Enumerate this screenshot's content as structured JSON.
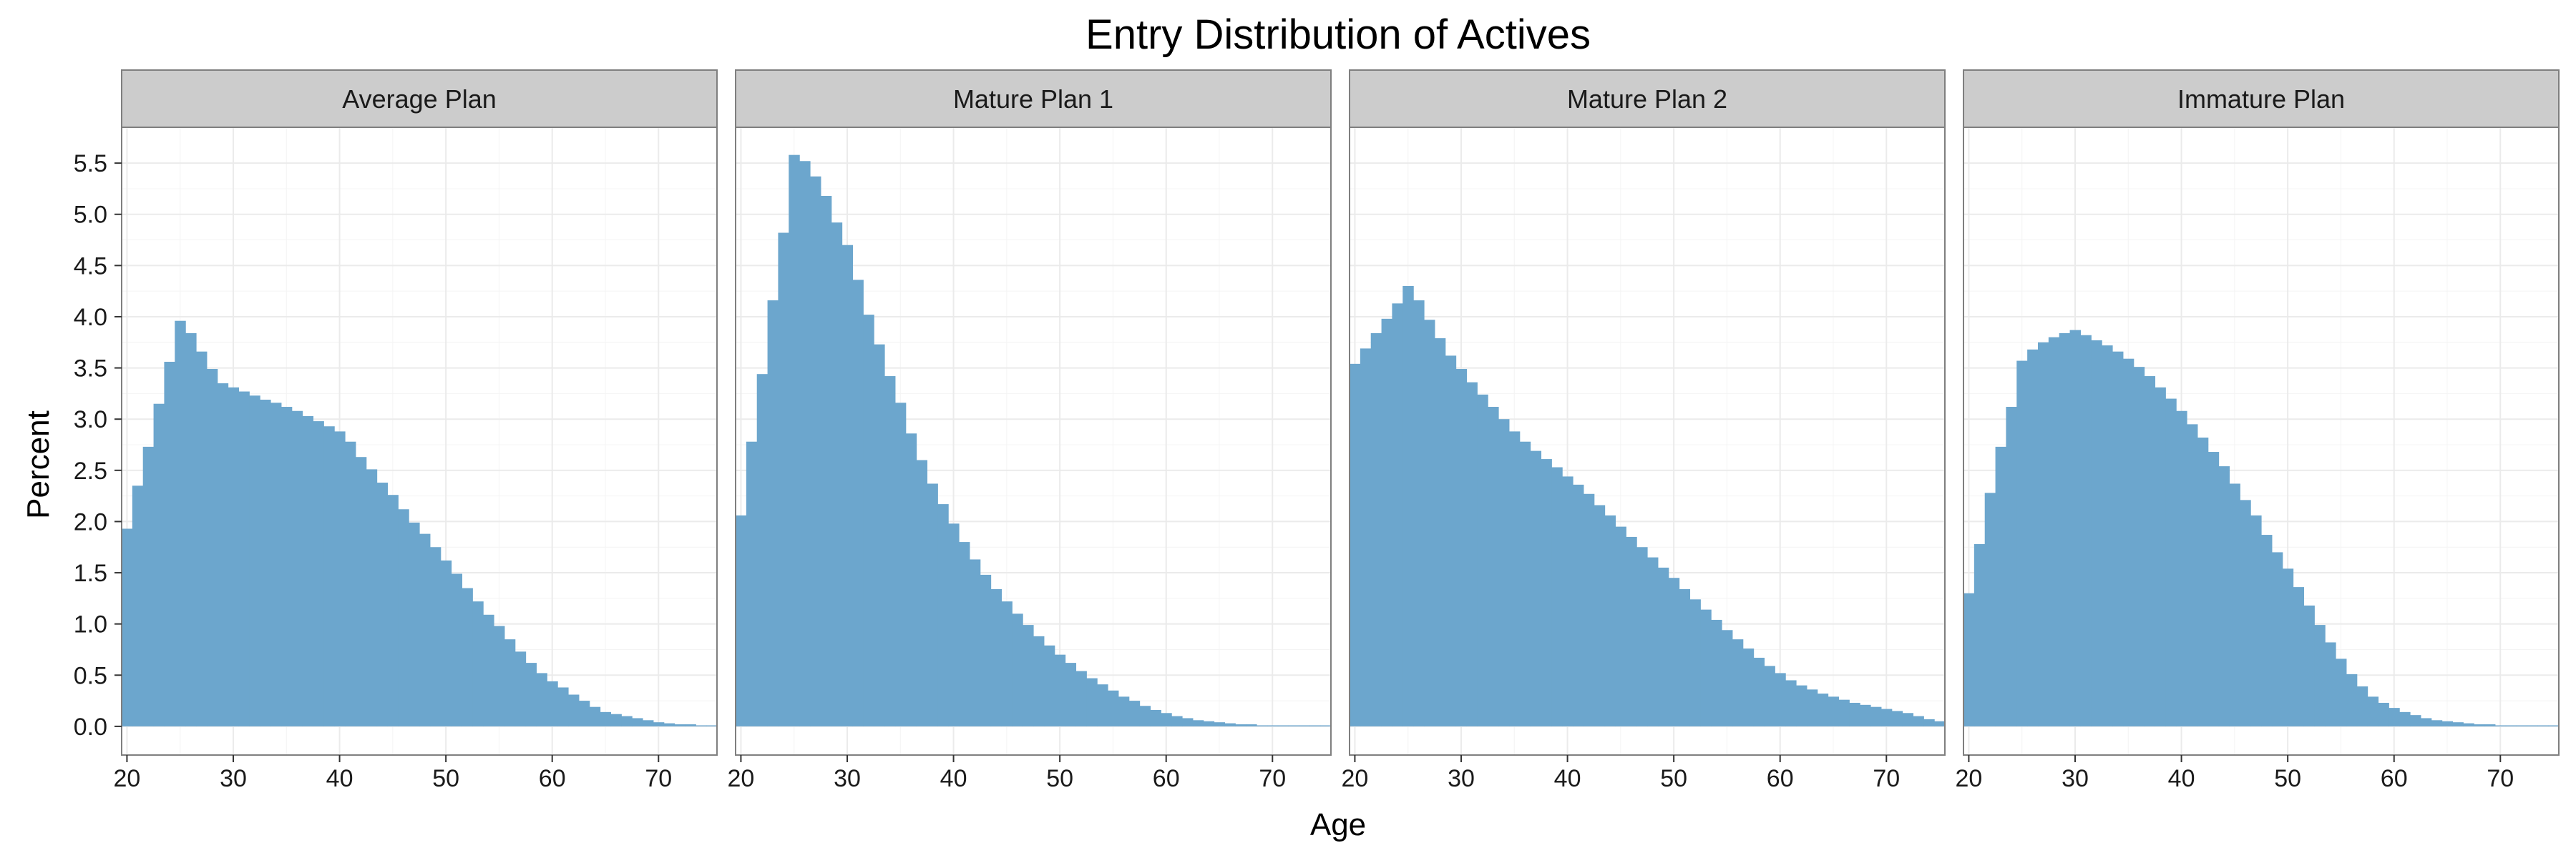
{
  "chart_data": {
    "type": "bar",
    "title": "Entry Distribution of Actives",
    "xlabel": "Age",
    "ylabel": "Percent",
    "xlim": [
      19.5,
      75.5
    ],
    "ylim": [
      -0.28,
      5.85
    ],
    "xticks": [
      "20",
      "30",
      "40",
      "50",
      "60",
      "70"
    ],
    "yticks": [
      "0.0",
      "0.5",
      "1.0",
      "1.5",
      "2.0",
      "2.5",
      "3.0",
      "3.5",
      "4.0",
      "4.5",
      "5.0",
      "5.5"
    ],
    "grid": true,
    "legend": "none",
    "bar_color": "#6ca6cd",
    "x": [
      20,
      21,
      22,
      23,
      24,
      25,
      26,
      27,
      28,
      29,
      30,
      31,
      32,
      33,
      34,
      35,
      36,
      37,
      38,
      39,
      40,
      41,
      42,
      43,
      44,
      45,
      46,
      47,
      48,
      49,
      50,
      51,
      52,
      53,
      54,
      55,
      56,
      57,
      58,
      59,
      60,
      61,
      62,
      63,
      64,
      65,
      66,
      67,
      68,
      69,
      70,
      71,
      72,
      73,
      74,
      75
    ],
    "panels": [
      {
        "name": "Average Plan",
        "values": [
          1.93,
          2.35,
          2.73,
          3.15,
          3.56,
          3.96,
          3.84,
          3.66,
          3.49,
          3.35,
          3.31,
          3.27,
          3.23,
          3.19,
          3.16,
          3.12,
          3.08,
          3.03,
          2.98,
          2.93,
          2.88,
          2.78,
          2.63,
          2.51,
          2.38,
          2.26,
          2.12,
          1.99,
          1.88,
          1.75,
          1.62,
          1.49,
          1.35,
          1.22,
          1.09,
          0.98,
          0.85,
          0.73,
          0.62,
          0.52,
          0.44,
          0.38,
          0.31,
          0.25,
          0.19,
          0.14,
          0.12,
          0.1,
          0.08,
          0.06,
          0.04,
          0.03,
          0.02,
          0.02,
          0.01,
          0.01
        ]
      },
      {
        "name": "Mature Plan 1",
        "values": [
          2.06,
          2.78,
          3.44,
          4.16,
          4.82,
          5.58,
          5.52,
          5.37,
          5.18,
          4.92,
          4.7,
          4.36,
          4.02,
          3.73,
          3.42,
          3.16,
          2.86,
          2.6,
          2.37,
          2.17,
          1.98,
          1.8,
          1.63,
          1.48,
          1.34,
          1.22,
          1.1,
          0.99,
          0.88,
          0.79,
          0.7,
          0.62,
          0.54,
          0.47,
          0.41,
          0.35,
          0.29,
          0.25,
          0.2,
          0.16,
          0.13,
          0.1,
          0.08,
          0.06,
          0.05,
          0.04,
          0.03,
          0.02,
          0.02,
          0.01,
          0.01,
          0.01,
          0.01,
          0.01,
          0.01,
          0.01
        ]
      },
      {
        "name": "Mature Plan 2",
        "values": [
          3.54,
          3.69,
          3.84,
          3.98,
          4.13,
          4.3,
          4.16,
          3.97,
          3.79,
          3.62,
          3.49,
          3.36,
          3.24,
          3.12,
          3.0,
          2.88,
          2.78,
          2.69,
          2.61,
          2.53,
          2.44,
          2.36,
          2.27,
          2.16,
          2.06,
          1.95,
          1.85,
          1.75,
          1.65,
          1.55,
          1.45,
          1.34,
          1.24,
          1.14,
          1.04,
          0.94,
          0.85,
          0.76,
          0.67,
          0.59,
          0.52,
          0.45,
          0.4,
          0.36,
          0.32,
          0.29,
          0.26,
          0.23,
          0.21,
          0.19,
          0.17,
          0.15,
          0.13,
          0.1,
          0.07,
          0.05
        ]
      },
      {
        "name": "Immature Plan",
        "values": [
          1.3,
          1.78,
          2.28,
          2.73,
          3.12,
          3.57,
          3.68,
          3.75,
          3.8,
          3.84,
          3.87,
          3.82,
          3.77,
          3.72,
          3.66,
          3.59,
          3.51,
          3.42,
          3.31,
          3.2,
          3.08,
          2.95,
          2.82,
          2.68,
          2.54,
          2.37,
          2.21,
          2.06,
          1.87,
          1.7,
          1.54,
          1.36,
          1.18,
          0.99,
          0.82,
          0.66,
          0.51,
          0.39,
          0.29,
          0.23,
          0.18,
          0.14,
          0.11,
          0.08,
          0.06,
          0.05,
          0.04,
          0.03,
          0.02,
          0.02,
          0.01,
          0.01,
          0.01,
          0.01,
          0.01,
          0.01
        ]
      }
    ]
  }
}
